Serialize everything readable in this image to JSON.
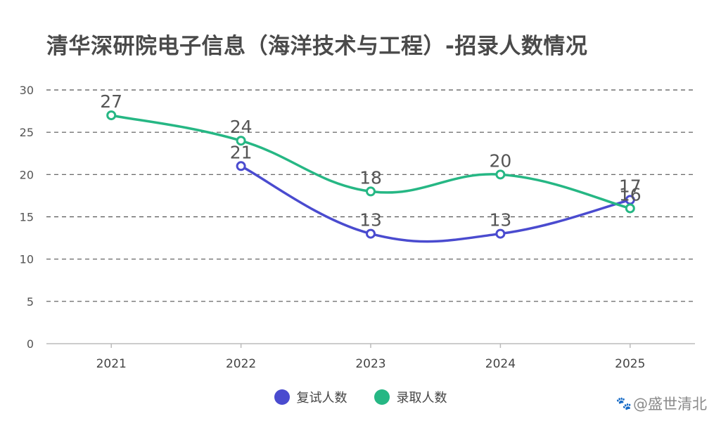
{
  "chart_data": {
    "type": "line",
    "title": "清华深研院电子信息（海洋技术与工程）-招录人数情况",
    "categories": [
      "2021",
      "2022",
      "2023",
      "2024",
      "2025"
    ],
    "series": [
      {
        "name": "复试人数",
        "color": "#4a4bcf",
        "values": [
          null,
          21,
          13,
          13,
          17
        ]
      },
      {
        "name": "录取人数",
        "color": "#26b784",
        "values": [
          27,
          24,
          18,
          20,
          16
        ]
      }
    ],
    "ylim": [
      0,
      30
    ],
    "yticks": [
      0,
      5,
      10,
      15,
      20,
      25,
      30
    ],
    "grid": true,
    "legend_position": "bottom-center",
    "xlabel": "",
    "ylabel": ""
  },
  "watermark": "@盛世清北"
}
